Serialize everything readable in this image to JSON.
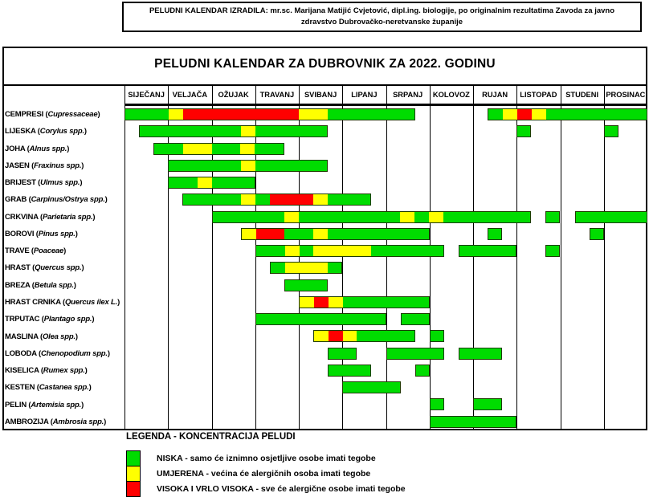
{
  "info_banner": {
    "line1": "PELUDNI KALENDAR IZRADILA: mr.sc. Marijana Matijić Cvjetović, dipl.ing. biologije, po originalnim rezultatima Zavoda za javno",
    "line2": "zdravstvo Dubrovačko-neretvanske županije"
  },
  "title": "PELUDNI KALENDAR ZA DUBROVNIK ZA 2022. GODINU",
  "months": [
    "SIJEČANJ",
    "VELJAČA",
    "OŽUJAK",
    "TRAVANJ",
    "SVIBANJ",
    "LIPANJ",
    "SRPANJ",
    "KOLOVOZ",
    "RUJAN",
    "LISTOPAD",
    "STUDENI",
    "PROSINAC"
  ],
  "colors": {
    "low": "#00dc00",
    "moderate": "#ffff00",
    "high": "#ff0000"
  },
  "legend": {
    "title": "LEGENDA - KONCENTRACIJA PELUDI",
    "items": [
      {
        "level": "low",
        "text": "NISKA - samo će iznimno osjetljive osobe imati tegobe"
      },
      {
        "level": "moderate",
        "text": "UMJERENA - većina će alergičnih osoba imati tegobe"
      },
      {
        "level": "high",
        "text": "VISOKA I VRLO VISOKA - sve će alergične osobe imati tegobe"
      }
    ]
  },
  "chart_data": {
    "type": "gantt-calendar",
    "unit": "month-thirds, 0–36 from 1 Jan; each month = 3 thirds",
    "levels": {
      "L": "low",
      "M": "moderate",
      "H": "high"
    },
    "categories": [
      "SIJEČANJ",
      "VELJAČA",
      "OŽUJAK",
      "TRAVANJ",
      "SVIBANJ",
      "LIPANJ",
      "SRPANJ",
      "KOLOVOZ",
      "RUJAN",
      "LISTOPAD",
      "STUDENI",
      "PROSINAC"
    ],
    "rows": [
      {
        "name": "CEMPRESI",
        "latin": "Cupressaceae",
        "segments": [
          [
            0,
            3,
            "L"
          ],
          [
            3,
            4,
            "M"
          ],
          [
            4,
            12,
            "H"
          ],
          [
            12,
            14,
            "M"
          ],
          [
            14,
            20,
            "L"
          ],
          [
            25,
            26,
            "L"
          ],
          [
            26,
            27,
            "M"
          ],
          [
            27,
            28,
            "H"
          ],
          [
            28,
            29,
            "M"
          ],
          [
            29,
            36,
            "L"
          ]
        ]
      },
      {
        "name": "LIJESKA",
        "latin": "Corylus spp.",
        "segments": [
          [
            1,
            8,
            "L"
          ],
          [
            8,
            9,
            "M"
          ],
          [
            9,
            14,
            "L"
          ],
          [
            27,
            28,
            "L"
          ],
          [
            33,
            34,
            "L"
          ]
        ]
      },
      {
        "name": "JOHA",
        "latin": "Alnus spp.",
        "segments": [
          [
            2,
            4,
            "L"
          ],
          [
            4,
            6,
            "M"
          ],
          [
            6,
            8,
            "L"
          ],
          [
            8,
            9,
            "M"
          ],
          [
            9,
            11,
            "L"
          ]
        ]
      },
      {
        "name": "JASEN",
        "latin": "Fraxinus spp.",
        "segments": [
          [
            3,
            8,
            "L"
          ],
          [
            8,
            9,
            "M"
          ],
          [
            9,
            14,
            "L"
          ]
        ]
      },
      {
        "name": "BRIJEST",
        "latin": "Ulmus spp.",
        "segments": [
          [
            3,
            5,
            "L"
          ],
          [
            5,
            6,
            "M"
          ],
          [
            6,
            9,
            "L"
          ]
        ]
      },
      {
        "name": "GRAB",
        "latin": "Carpinus/Ostrya spp.",
        "segments": [
          [
            4,
            8,
            "L"
          ],
          [
            8,
            9,
            "M"
          ],
          [
            9,
            10,
            "L"
          ],
          [
            10,
            13,
            "H"
          ],
          [
            13,
            14,
            "M"
          ],
          [
            14,
            17,
            "L"
          ]
        ]
      },
      {
        "name": "CRKVINA",
        "latin": "Parietaria spp.",
        "segments": [
          [
            6,
            11,
            "L"
          ],
          [
            11,
            12,
            "M"
          ],
          [
            12,
            19,
            "L"
          ],
          [
            19,
            20,
            "M"
          ],
          [
            20,
            21,
            "L"
          ],
          [
            21,
            22,
            "M"
          ],
          [
            22,
            28,
            "L"
          ],
          [
            29,
            30,
            "L"
          ],
          [
            31,
            36,
            "L"
          ]
        ]
      },
      {
        "name": "BOROVI",
        "latin": "Pinus spp.",
        "segments": [
          [
            8,
            9,
            "M"
          ],
          [
            9,
            11,
            "H"
          ],
          [
            11,
            13,
            "L"
          ],
          [
            13,
            14,
            "M"
          ],
          [
            14,
            21,
            "L"
          ],
          [
            25,
            26,
            "L"
          ],
          [
            32,
            33,
            "L"
          ]
        ]
      },
      {
        "name": "TRAVE",
        "latin": "Poaceae",
        "segments": [
          [
            9,
            11,
            "L"
          ],
          [
            11,
            12,
            "M"
          ],
          [
            12,
            13,
            "L"
          ],
          [
            13,
            17,
            "M"
          ],
          [
            17,
            22,
            "L"
          ],
          [
            23,
            27,
            "L"
          ],
          [
            29,
            30,
            "L"
          ]
        ]
      },
      {
        "name": "HRAST",
        "latin": "Quercus spp.",
        "segments": [
          [
            10,
            11,
            "L"
          ],
          [
            11,
            14,
            "M"
          ],
          [
            14,
            15,
            "L"
          ]
        ]
      },
      {
        "name": "BREZA",
        "latin": "Betula spp.",
        "segments": [
          [
            11,
            14,
            "L"
          ]
        ]
      },
      {
        "name": "HRAST CRNIKA",
        "latin": "Quercus ilex L.",
        "segments": [
          [
            12,
            13,
            "M"
          ],
          [
            13,
            14,
            "H"
          ],
          [
            14,
            15,
            "M"
          ],
          [
            15,
            21,
            "L"
          ]
        ]
      },
      {
        "name": "TRPUTAC",
        "latin": "Plantago spp.",
        "segments": [
          [
            9,
            18,
            "L"
          ],
          [
            19,
            21,
            "L"
          ]
        ]
      },
      {
        "name": "MASLINA",
        "latin": "Olea spp.",
        "segments": [
          [
            13,
            14,
            "M"
          ],
          [
            14,
            15,
            "H"
          ],
          [
            15,
            16,
            "M"
          ],
          [
            16,
            20,
            "L"
          ],
          [
            21,
            22,
            "L"
          ]
        ]
      },
      {
        "name": "LOBODA",
        "latin": "Chenopodium spp.",
        "segments": [
          [
            14,
            16,
            "L"
          ],
          [
            18,
            22,
            "L"
          ],
          [
            23,
            26,
            "L"
          ]
        ]
      },
      {
        "name": "KISELICA",
        "latin": "Rumex spp.",
        "segments": [
          [
            14,
            17,
            "L"
          ],
          [
            20,
            21,
            "L"
          ]
        ]
      },
      {
        "name": "KESTEN",
        "latin": "Castanea spp.",
        "segments": [
          [
            15,
            19,
            "L"
          ]
        ]
      },
      {
        "name": "PELIN",
        "latin": "Artemisia spp.",
        "segments": [
          [
            21,
            22,
            "L"
          ],
          [
            24,
            26,
            "L"
          ]
        ]
      },
      {
        "name": "AMBROZIJA",
        "latin": "Ambrosia spp.",
        "segments": [
          [
            21,
            27,
            "L"
          ]
        ]
      }
    ]
  }
}
